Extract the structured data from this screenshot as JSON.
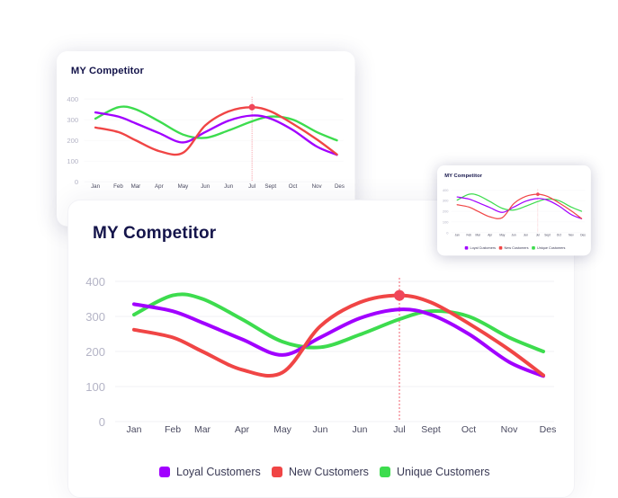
{
  "chart_data": {
    "type": "line",
    "title": "MY Competitor",
    "categories": [
      "Jan",
      "Feb",
      "Mar",
      "Apr",
      "May",
      "Jun",
      "Jun",
      "Jul",
      "Sept",
      "Oct",
      "Nov",
      "Des"
    ],
    "yticks": [
      0,
      100,
      200,
      300,
      400
    ],
    "ylim": [
      0,
      400
    ],
    "grid": true,
    "legend_position": "bottom",
    "highlight": {
      "category_index": 7,
      "series": "New Customers",
      "value": 360
    },
    "series": [
      {
        "name": "Loyal Customers",
        "color": "#a100ff",
        "values": [
          335,
          315,
          282,
          235,
          190,
          240,
          295,
          320,
          305,
          250,
          170,
          130
        ]
      },
      {
        "name": "New Customers",
        "color": "#f04545",
        "values": [
          262,
          240,
          200,
          148,
          140,
          272,
          340,
          360,
          340,
          280,
          205,
          132
        ]
      },
      {
        "name": "Unique Customers",
        "color": "#3ddc4e",
        "values": [
          305,
          360,
          350,
          292,
          228,
          212,
          248,
          292,
          315,
          300,
          240,
          200
        ]
      }
    ]
  }
}
